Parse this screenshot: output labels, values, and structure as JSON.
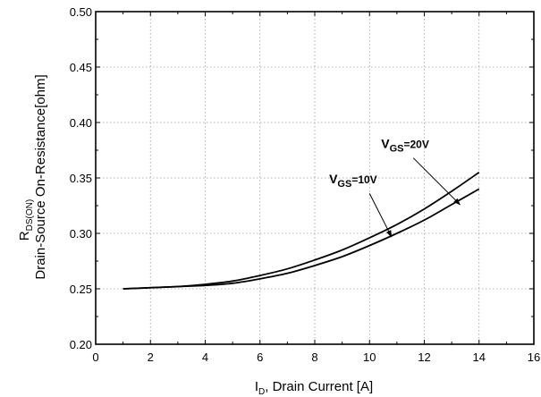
{
  "chart_data": {
    "type": "line",
    "xlabel": {
      "main": "I",
      "sub": "D",
      "rest": ", Drain Current [A]"
    },
    "ylabel": {
      "line1_main": "R",
      "line1_sub": "DS(ON)",
      "line2": "Drain-Source On-Resistance[ohm]"
    },
    "xlim": [
      0,
      16
    ],
    "ylim": [
      0.2,
      0.5
    ],
    "xticks": [
      0,
      2,
      4,
      6,
      8,
      10,
      12,
      14,
      16
    ],
    "yticks": [
      0.2,
      0.25,
      0.3,
      0.35,
      0.4,
      0.45,
      0.5
    ],
    "x_tick_labels": [
      "0",
      "2",
      "4",
      "6",
      "8",
      "10",
      "12",
      "14",
      "16"
    ],
    "y_tick_labels": [
      "0.20",
      "0.25",
      "0.30",
      "0.35",
      "0.40",
      "0.45",
      "0.50"
    ],
    "grid": true,
    "series": [
      {
        "id": "vgs20",
        "annotation": {
          "main": "V",
          "sub": "GS",
          "rest": "=20V"
        },
        "x": [
          1,
          2,
          3,
          4,
          5,
          6,
          7,
          8,
          9,
          10,
          11,
          12,
          13,
          14
        ],
        "y": [
          0.25,
          0.251,
          0.252,
          0.254,
          0.257,
          0.262,
          0.268,
          0.276,
          0.285,
          0.296,
          0.308,
          0.322,
          0.338,
          0.355
        ]
      },
      {
        "id": "vgs10",
        "annotation": {
          "main": "V",
          "sub": "GS",
          "rest": "=10V"
        },
        "x": [
          1,
          2,
          3,
          4,
          5,
          6,
          7,
          8,
          9,
          10,
          11,
          12,
          13,
          14
        ],
        "y": [
          0.25,
          0.251,
          0.252,
          0.253,
          0.255,
          0.259,
          0.264,
          0.271,
          0.279,
          0.289,
          0.3,
          0.312,
          0.326,
          0.34
        ]
      }
    ],
    "annotations": [
      {
        "series": "vgs20",
        "text_at": [
          11.3,
          0.377
        ],
        "arrow_from": [
          11.6,
          0.368
        ],
        "arrow_to": [
          13.3,
          0.326
        ]
      },
      {
        "series": "vgs10",
        "text_at": [
          9.4,
          0.345
        ],
        "arrow_from": [
          10.0,
          0.336
        ],
        "arrow_to": [
          10.8,
          0.297
        ]
      }
    ]
  }
}
